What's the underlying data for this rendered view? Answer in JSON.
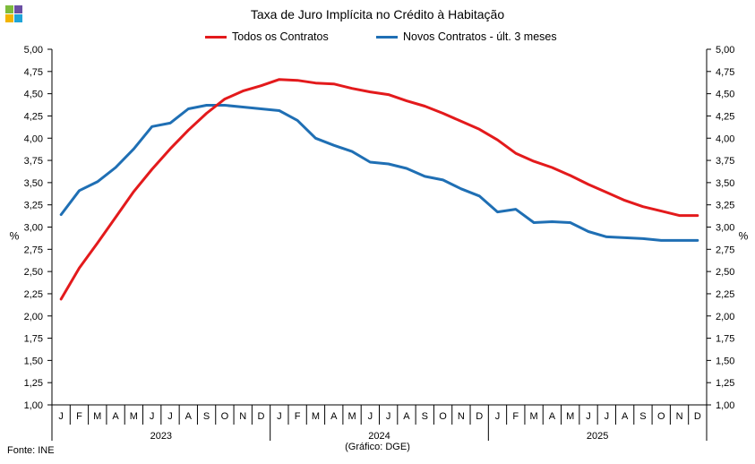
{
  "header": {
    "title": "Taxa de Juro Implícita  no Crédito à Habitação"
  },
  "logo": {
    "icon": "ine-logo-icon",
    "colors": [
      "#7dbb3c",
      "#6a4fa3",
      "#f2b400",
      "#1fa4d8"
    ]
  },
  "footer": {
    "source": "Fonte: INE",
    "note": "(Gráfico: DGE)"
  },
  "chart_data": {
    "type": "line",
    "title": "Taxa de Juro Implícita  no Crédito à Habitação",
    "ylabel_left": "%",
    "ylabel_right": "%",
    "ylim": [
      1.0,
      5.0
    ],
    "yticks": [
      "1,00",
      "1,25",
      "1,50",
      "1,75",
      "2,00",
      "2,25",
      "2,50",
      "2,75",
      "3,00",
      "3,25",
      "3,50",
      "3,75",
      "4,00",
      "4,25",
      "4,50",
      "4,75",
      "5,00"
    ],
    "grid": false,
    "legend_position": "top-center",
    "months": [
      "J",
      "F",
      "M",
      "A",
      "M",
      "J",
      "J",
      "A",
      "S",
      "O",
      "N",
      "D",
      "J",
      "F",
      "M",
      "A",
      "M",
      "J",
      "J",
      "A",
      "S",
      "O",
      "N",
      "D",
      "J",
      "F",
      "M",
      "A",
      "M",
      "J",
      "J",
      "A",
      "S",
      "O",
      "N",
      "D"
    ],
    "years": [
      "2023",
      "2024",
      "2025"
    ],
    "series": [
      {
        "name": "Todos os Contratos",
        "color": "#e31a1c",
        "values": [
          2.19,
          2.54,
          2.82,
          3.11,
          3.4,
          3.65,
          3.88,
          4.09,
          4.28,
          4.44,
          4.53,
          4.59,
          4.66,
          4.65,
          4.62,
          4.61,
          4.56,
          4.52,
          4.49,
          4.42,
          4.36,
          4.28,
          4.19,
          4.1,
          3.98,
          3.83,
          3.74,
          3.67,
          3.58,
          3.48,
          3.39,
          3.3,
          3.23,
          3.18,
          3.13,
          3.13
        ]
      },
      {
        "name": "Novos Contratos - últ. 3 meses",
        "color": "#1f6fb4",
        "values": [
          3.14,
          3.41,
          3.51,
          3.67,
          3.88,
          4.13,
          4.17,
          4.33,
          4.37,
          4.37,
          4.35,
          4.33,
          4.31,
          4.2,
          4.0,
          3.92,
          3.85,
          3.73,
          3.71,
          3.66,
          3.57,
          3.53,
          3.43,
          3.35,
          3.17,
          3.2,
          3.05,
          3.06,
          3.05,
          2.95,
          2.89,
          2.88,
          2.87,
          2.85,
          2.85,
          2.85
        ]
      }
    ]
  }
}
